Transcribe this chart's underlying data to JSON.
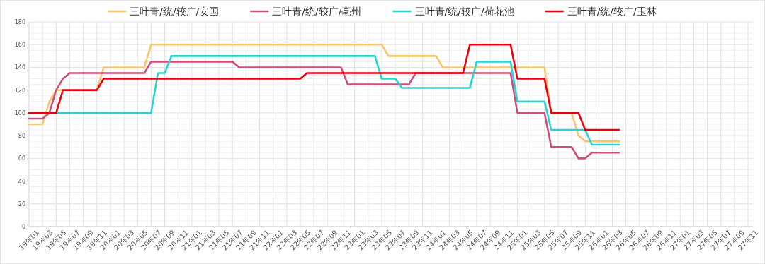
{
  "chart_data": {
    "type": "line",
    "categories": [
      "19年01",
      null,
      "19年03",
      null,
      "19年05",
      null,
      "19年07",
      null,
      "19年09",
      null,
      "19年11",
      null,
      "20年01",
      null,
      "20年03",
      null,
      "20年05",
      null,
      "20年07",
      null,
      "20年09",
      null,
      "20年11",
      null,
      "21年01",
      null,
      "21年03",
      null,
      "21年05",
      null,
      "21年07",
      null,
      "21年09",
      null,
      "21年11",
      null,
      "22年01",
      null,
      "22年03",
      null,
      "22年05",
      null,
      "22年07",
      null,
      "22年09",
      null,
      "22年11",
      null,
      "23年01",
      null,
      "23年03",
      null,
      "23年05",
      null,
      "23年07",
      null,
      "23年09",
      null,
      "23年11",
      null,
      "24年01",
      null,
      "24年03",
      null,
      "24年05",
      null,
      "24年07",
      null,
      "24年09",
      null,
      "24年11",
      null,
      "25年01",
      null,
      "25年03",
      null,
      "25年05",
      null,
      "25年07",
      null,
      "25年09",
      null,
      "25年11",
      null,
      "26年01",
      null,
      "26年03",
      null,
      "26年05",
      null,
      "26年07",
      null,
      "26年09",
      null,
      "26年11",
      null,
      "27年01",
      null,
      "27年03",
      null,
      "27年05",
      null,
      "27年07",
      null,
      "27年09",
      null,
      "27年11"
    ],
    "series": [
      {
        "name": "三叶青/统/较广/安国",
        "color": "#f9c56e",
        "values": [
          90,
          90,
          90,
          110,
          120,
          120,
          null,
          null,
          null,
          null,
          120,
          140,
          140,
          140,
          140,
          140,
          140,
          140,
          160,
          160,
          160,
          160,
          160,
          160,
          160,
          160,
          160,
          160,
          160,
          160,
          160,
          160,
          160,
          160,
          160,
          160,
          160,
          160,
          160,
          160,
          160,
          160,
          160,
          160,
          160,
          160,
          160,
          160,
          160,
          160,
          160,
          160,
          160,
          150,
          150,
          150,
          150,
          150,
          150,
          150,
          150,
          140,
          140,
          140,
          140,
          140,
          140,
          140,
          140,
          140,
          140,
          140,
          140,
          140,
          140,
          140,
          140,
          100,
          100,
          100,
          100,
          80,
          75,
          75,
          75,
          75,
          75,
          75,
          null,
          null,
          null,
          null,
          null,
          null,
          null,
          null,
          null,
          null,
          null,
          null,
          null,
          null,
          null,
          null,
          null,
          null,
          null
        ]
      },
      {
        "name": "三叶青/统/较广/亳州",
        "color": "#cc4f7b",
        "values": [
          95,
          95,
          95,
          100,
          120,
          130,
          135,
          135,
          135,
          135,
          135,
          135,
          135,
          135,
          135,
          135,
          135,
          135,
          145,
          145,
          145,
          145,
          145,
          145,
          145,
          145,
          145,
          145,
          145,
          145,
          145,
          140,
          140,
          140,
          140,
          140,
          140,
          140,
          140,
          140,
          140,
          140,
          140,
          140,
          140,
          140,
          140,
          125,
          125,
          125,
          125,
          125,
          125,
          125,
          125,
          125,
          125,
          135,
          135,
          135,
          135,
          135,
          135,
          135,
          135,
          135,
          135,
          135,
          135,
          135,
          135,
          135,
          100,
          100,
          100,
          100,
          100,
          70,
          70,
          70,
          70,
          60,
          60,
          65,
          65,
          65,
          65,
          65,
          null,
          null,
          null,
          null,
          null,
          null,
          null,
          null,
          null,
          null,
          null,
          null,
          null,
          null,
          null,
          null,
          null,
          null,
          null
        ]
      },
      {
        "name": "三叶青/统/较广/荷花池",
        "color": "#2ad3d3",
        "values": [
          null,
          null,
          null,
          null,
          100,
          100,
          100,
          100,
          100,
          100,
          100,
          100,
          100,
          100,
          100,
          100,
          100,
          100,
          100,
          135,
          135,
          150,
          150,
          150,
          150,
          150,
          150,
          150,
          150,
          150,
          150,
          150,
          150,
          150,
          150,
          150,
          150,
          150,
          150,
          150,
          150,
          150,
          150,
          150,
          150,
          150,
          150,
          150,
          150,
          150,
          150,
          150,
          130,
          130,
          130,
          122,
          122,
          122,
          122,
          122,
          122,
          122,
          122,
          122,
          122,
          122,
          145,
          145,
          145,
          145,
          145,
          145,
          110,
          110,
          110,
          110,
          110,
          85,
          85,
          85,
          85,
          85,
          85,
          72,
          72,
          72,
          72,
          72,
          null,
          null,
          null,
          null,
          null,
          null,
          null,
          null,
          null,
          null,
          null,
          null,
          null,
          null,
          null,
          null,
          null,
          null,
          null
        ]
      },
      {
        "name": "三叶青/统/较广/玉林",
        "color": "#e8000b",
        "values": [
          100,
          100,
          100,
          100,
          100,
          120,
          120,
          120,
          120,
          120,
          120,
          130,
          130,
          130,
          130,
          130,
          130,
          130,
          130,
          130,
          130,
          130,
          130,
          130,
          130,
          130,
          130,
          130,
          130,
          130,
          130,
          130,
          130,
          130,
          130,
          130,
          130,
          130,
          130,
          130,
          130,
          135,
          135,
          135,
          135,
          135,
          135,
          135,
          135,
          135,
          135,
          135,
          135,
          135,
          135,
          135,
          135,
          135,
          135,
          135,
          135,
          135,
          135,
          135,
          135,
          160,
          160,
          160,
          160,
          160,
          160,
          160,
          130,
          130,
          130,
          130,
          130,
          100,
          100,
          100,
          100,
          100,
          85,
          85,
          85,
          85,
          85,
          85,
          null,
          null,
          null,
          null,
          null,
          null,
          null,
          null,
          null,
          null,
          null,
          null,
          null,
          null,
          null,
          null,
          null,
          null,
          null
        ]
      }
    ],
    "ylim": [
      0,
      180
    ],
    "yticks": [
      0,
      20,
      40,
      60,
      80,
      100,
      120,
      140,
      160,
      180
    ],
    "grid": true,
    "legend": "top",
    "marker": "none",
    "line_style": "solid"
  }
}
